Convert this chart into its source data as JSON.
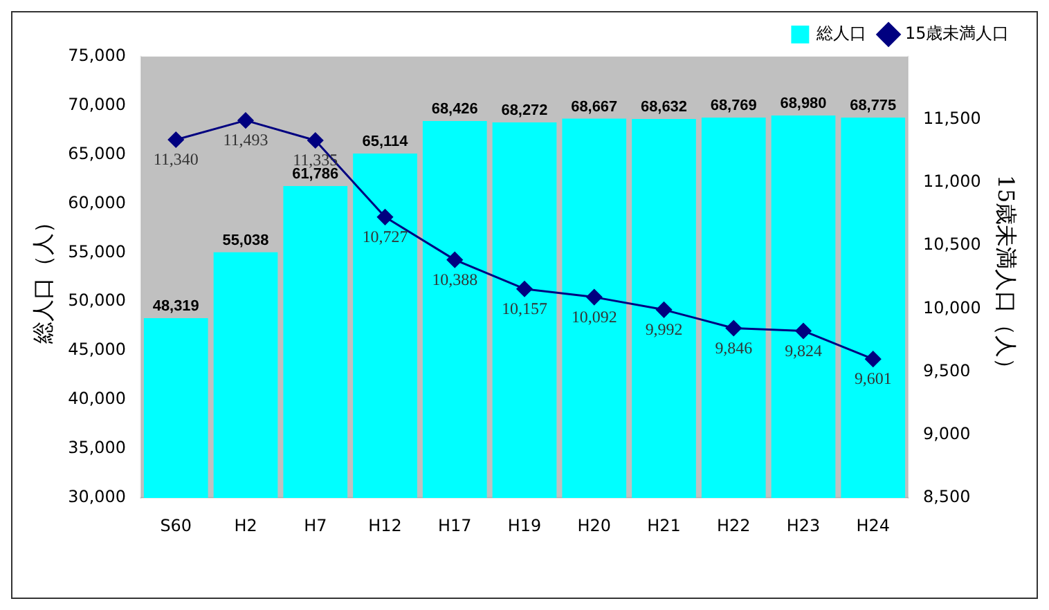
{
  "chart_data": {
    "type": "bar",
    "ylabel": "総人口（人）",
    "y2label": "15歳未満人口（人）",
    "categories": [
      "S60",
      "H2",
      "H7",
      "H12",
      "H17",
      "H19",
      "H20",
      "H21",
      "H22",
      "H23",
      "H24"
    ],
    "series": [
      {
        "name": "総人口",
        "color": "#00ffff",
        "values": [
          48319,
          55038,
          61786,
          65114,
          68426,
          68272,
          68667,
          68632,
          68769,
          68980,
          68775
        ],
        "value_labels": [
          "48,319",
          "55,038",
          "61,786",
          "65,114",
          "68,426",
          "68,272",
          "68,667",
          "68,632",
          "68,769",
          "68,980",
          "68,775"
        ]
      },
      {
        "name": "15歳未満人口",
        "type": "line",
        "axis": "y2",
        "color": "#000080",
        "marker": "diamond",
        "values": [
          11340,
          11493,
          11335,
          10727,
          10388,
          10157,
          10092,
          9992,
          9846,
          9824,
          9601
        ],
        "value_labels": [
          "11,340",
          "11,493",
          "11,335",
          "10,727",
          "10,388",
          "10,157",
          "10,092",
          "9,992",
          "9,846",
          "9,824",
          "9,601"
        ]
      }
    ],
    "ylim": [
      30000,
      75000
    ],
    "yticks": [
      {
        "value": 30000,
        "label": "30,000"
      },
      {
        "value": 35000,
        "label": "35,000"
      },
      {
        "value": 40000,
        "label": "40,000"
      },
      {
        "value": 45000,
        "label": "45,000"
      },
      {
        "value": 50000,
        "label": "50,000"
      },
      {
        "value": 55000,
        "label": "55,000"
      },
      {
        "value": 60000,
        "label": "60,000"
      },
      {
        "value": 65000,
        "label": "65,000"
      },
      {
        "value": 70000,
        "label": "70,000"
      },
      {
        "value": 75000,
        "label": "75,000"
      }
    ],
    "y2lim": [
      8500,
      12000
    ],
    "y2ticks": [
      {
        "value": 8500,
        "label": "8,500"
      },
      {
        "value": 9000,
        "label": "9,000"
      },
      {
        "value": 9500,
        "label": "9,500"
      },
      {
        "value": 10000,
        "label": "10,000"
      },
      {
        "value": 10500,
        "label": "10,500"
      },
      {
        "value": 11000,
        "label": "11,000"
      },
      {
        "value": 11500,
        "label": "11,500"
      }
    ],
    "grid": false,
    "legend": "top right"
  }
}
